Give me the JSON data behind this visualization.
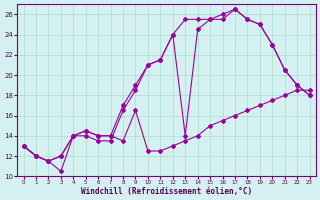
{
  "xlabel": "Windchill (Refroidissement éolien,°C)",
  "background_color": "#d4f0f0",
  "line_color": "#990099",
  "xlim": [
    -0.5,
    23.5
  ],
  "ylim": [
    10,
    27
  ],
  "yticks": [
    10,
    12,
    14,
    16,
    18,
    20,
    22,
    24,
    26
  ],
  "xticks": [
    0,
    1,
    2,
    3,
    4,
    5,
    6,
    7,
    8,
    9,
    10,
    11,
    12,
    13,
    14,
    15,
    16,
    17,
    18,
    19,
    20,
    21,
    22,
    23
  ],
  "line1_x": [
    0,
    1,
    2,
    3,
    4,
    5,
    6,
    7,
    8,
    9,
    10,
    11,
    12,
    13,
    14,
    15,
    16,
    17,
    18,
    19,
    20,
    21,
    22,
    23
  ],
  "line1_y": [
    13,
    12,
    11.5,
    10.5,
    14.0,
    14.0,
    13.5,
    13.5,
    16.5,
    18.5,
    21.0,
    21.5,
    24.0,
    25.5,
    25.5,
    25.5,
    26.0,
    26.5,
    25.5,
    25.0,
    23.0,
    20.5,
    19.0,
    18.0
  ],
  "line2_x": [
    0,
    1,
    2,
    3,
    4,
    5,
    6,
    7,
    8,
    9,
    10,
    11,
    12,
    13,
    14,
    15,
    16,
    17,
    18,
    19,
    20,
    21,
    22,
    23
  ],
  "line2_y": [
    13.0,
    12.0,
    11.5,
    12.0,
    14.0,
    14.5,
    14.0,
    14.0,
    13.5,
    16.5,
    12.5,
    12.5,
    13.0,
    13.5,
    14.0,
    15.0,
    15.5,
    16.0,
    16.5,
    17.0,
    17.5,
    18.0,
    18.5,
    18.5
  ],
  "line3_x": [
    0,
    1,
    2,
    3,
    4,
    5,
    6,
    7,
    8,
    9,
    10,
    11,
    12,
    13,
    14,
    15,
    16,
    17,
    18,
    19,
    20,
    21,
    22,
    23
  ],
  "line3_y": [
    13.0,
    12.0,
    11.5,
    12.0,
    14.0,
    14.5,
    14.0,
    14.0,
    17.0,
    19.0,
    21.0,
    21.5,
    24.0,
    14.0,
    24.5,
    25.5,
    25.5,
    26.5,
    25.5,
    25.0,
    23.0,
    20.5,
    19.0,
    18.0
  ]
}
